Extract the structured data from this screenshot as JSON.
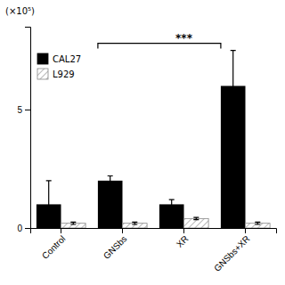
{
  "chart_data": {
    "type": "bar",
    "ylabel": "(×10⁵)",
    "categories": [
      "Control",
      "GNSbs",
      "XR",
      "GNSbs+XR"
    ],
    "series": [
      {
        "name": "CAL27",
        "color": "#000000",
        "values": [
          1.0,
          2.0,
          1.0,
          6.0
        ],
        "errors": [
          1.0,
          0.2,
          0.2,
          1.5
        ]
      },
      {
        "name": "L929",
        "color": "#ffffff",
        "values": [
          0.2,
          0.2,
          0.4,
          0.2
        ],
        "errors": [
          0.05,
          0.05,
          0.05,
          0.05
        ]
      }
    ],
    "ylim": [
      0,
      8.5
    ],
    "yticks": [
      0,
      5
    ],
    "grid": false,
    "legend": "upper left",
    "annotations": [
      {
        "text": "***",
        "from": "GNSbs",
        "to": "GNSbs+XR",
        "y": 7.8
      }
    ]
  }
}
